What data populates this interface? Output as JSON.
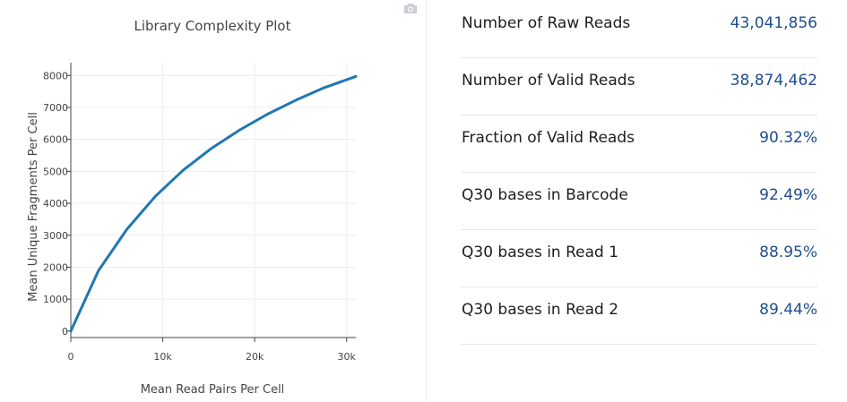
{
  "chart_data": {
    "type": "line",
    "title": "Library Complexity Plot",
    "xlabel": "Mean Read Pairs Per Cell",
    "ylabel": "Mean Unique Fragments Per Cell",
    "xlim": [
      0,
      31000
    ],
    "ylim": [
      -200,
      8400
    ],
    "x_ticks": [
      0,
      10000,
      20000,
      30000
    ],
    "x_tick_labels": [
      "0",
      "10k",
      "20k",
      "30k"
    ],
    "y_ticks": [
      0,
      1000,
      2000,
      3000,
      4000,
      5000,
      6000,
      7000,
      8000
    ],
    "y_tick_labels": [
      "0",
      "1000",
      "2000",
      "3000",
      "4000",
      "5000",
      "6000",
      "7000",
      "8000"
    ],
    "grid": true,
    "line_color": "#1f77b4",
    "series": [
      {
        "x": [
          0,
          3000,
          6100,
          9200,
          12200,
          15300,
          18400,
          21400,
          24500,
          27600,
          31000
        ],
        "y": [
          0,
          1890,
          3190,
          4220,
          5030,
          5720,
          6300,
          6790,
          7230,
          7620,
          7970
        ]
      }
    ]
  },
  "metrics": [
    {
      "label": "Number of Raw Reads",
      "value": "43,041,856"
    },
    {
      "label": "Number of Valid Reads",
      "value": "38,874,462"
    },
    {
      "label": "Fraction of Valid Reads",
      "value": "90.32%"
    },
    {
      "label": "Q30 bases in Barcode",
      "value": "92.49%"
    },
    {
      "label": "Q30 bases in Read 1",
      "value": "88.95%"
    },
    {
      "label": "Q30 bases in Read 2",
      "value": "89.44%"
    }
  ]
}
